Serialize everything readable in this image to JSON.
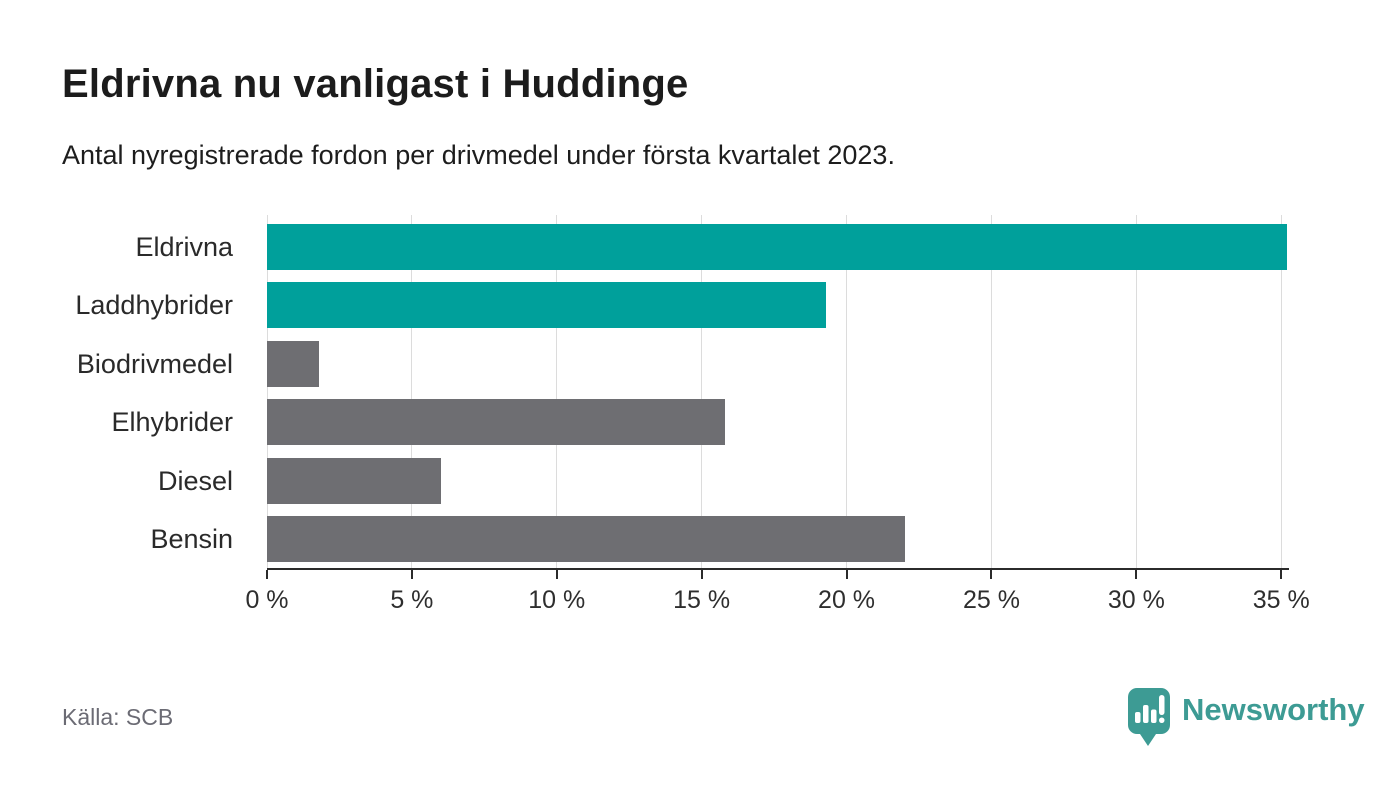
{
  "header": {
    "title": "Eldrivna nu vanligast i Huddinge",
    "subtitle": "Antal nyregistrerade fordon per drivmedel under första kvartalet 2023."
  },
  "footer": {
    "source": "Källa: SCB",
    "brand": "Newsworthy"
  },
  "icons": {
    "brand_logo": "newsworthy-speech-bubble-bar-chart-icon"
  },
  "colors": {
    "bar_teal": "#00a09b",
    "bar_gray": "#6e6e72",
    "axis": "#2b2b2b",
    "gridline": "#dcdcdc",
    "brand_teal": "#3d9b94",
    "title_text": "#1c1c1c",
    "source_text": "#6b6b74"
  },
  "chart_data": {
    "type": "bar",
    "orientation": "horizontal",
    "title": "Eldrivna nu vanligast i Huddinge",
    "subtitle": "Antal nyregistrerade fordon per drivmedel under första kvartalet 2023.",
    "categories": [
      "Eldrivna",
      "Laddhybrider",
      "Biodrivmedel",
      "Elhybrider",
      "Diesel",
      "Bensin"
    ],
    "values": [
      35.2,
      19.3,
      1.8,
      15.8,
      6.0,
      22.0
    ],
    "bar_colors": [
      "#00a09b",
      "#00a09b",
      "#6e6e72",
      "#6e6e72",
      "#6e6e72",
      "#6e6e72"
    ],
    "unit": "%",
    "xlim": [
      0,
      36.2
    ],
    "xticks": [
      0,
      5,
      10,
      15,
      20,
      25,
      30,
      35
    ],
    "xtick_labels": [
      "0 %",
      "5 %",
      "10 %",
      "15 %",
      "20 %",
      "25 %",
      "30 %",
      "35 %"
    ],
    "grid": true,
    "legend": "none",
    "source": "Källa: SCB"
  }
}
